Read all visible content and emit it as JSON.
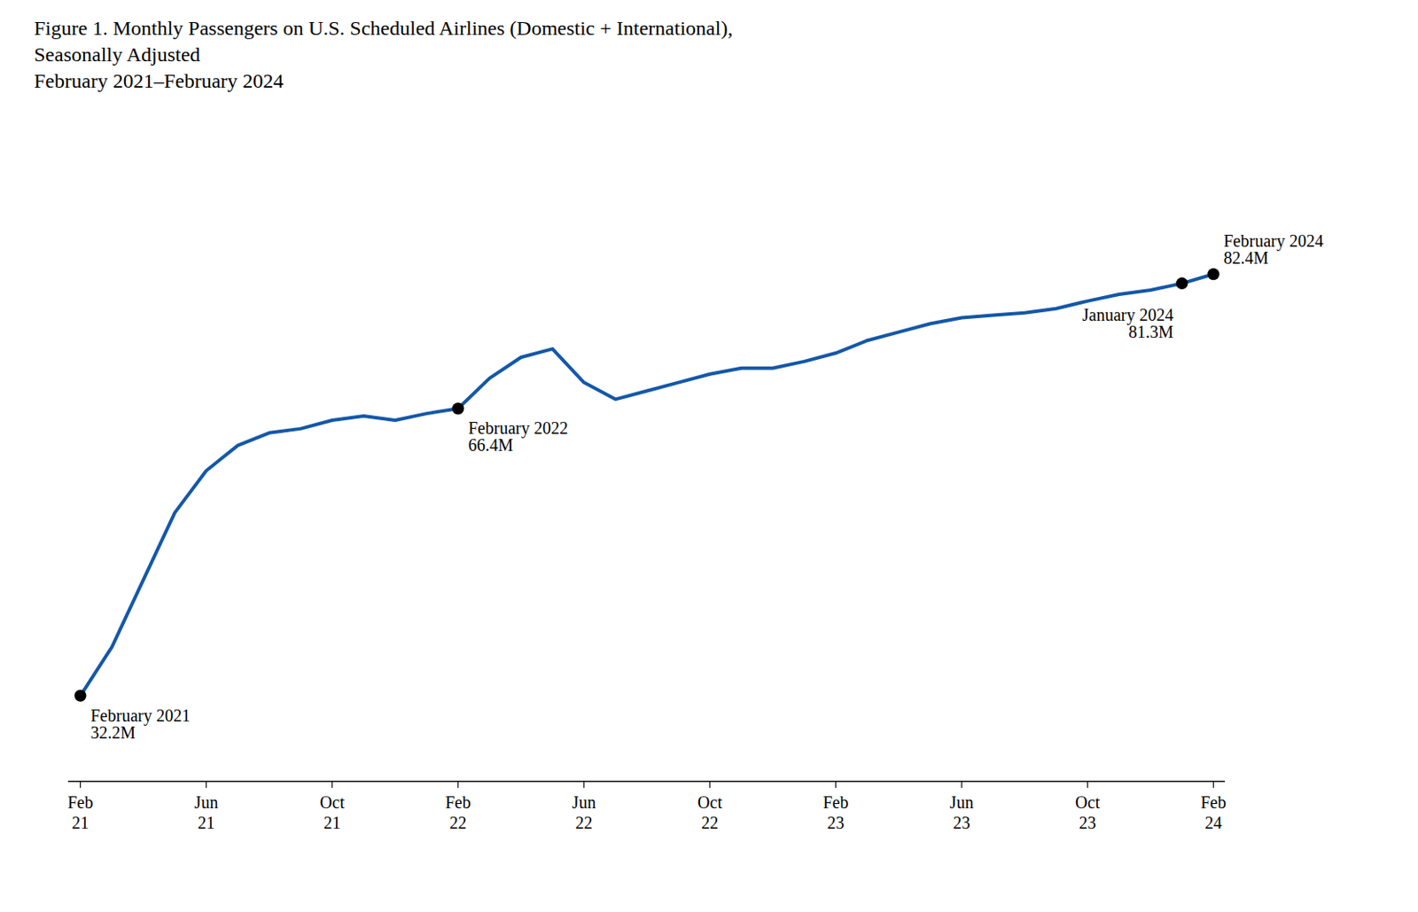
{
  "chart_data": {
    "type": "line",
    "title": "Figure 1. Monthly Passengers on U.S. Scheduled Airlines (Domestic + International),\nSeasonally Adjusted",
    "subtitle": "February 2021–February 2024",
    "categories": [
      "Feb\n21",
      null,
      null,
      null,
      "Jun\n21",
      null,
      null,
      null,
      "Oct\n21",
      null,
      null,
      null,
      "Feb\n22",
      null,
      null,
      null,
      "Jun\n22",
      null,
      null,
      null,
      "Oct\n22",
      null,
      null,
      null,
      "Feb\n23",
      null,
      null,
      null,
      "Jun\n23",
      null,
      null,
      null,
      "Oct\n23",
      null,
      null,
      null,
      "Feb\n24"
    ],
    "values": [
      32.2,
      38.0,
      46.0,
      54.0,
      59.0,
      62.0,
      63.5,
      64.0,
      65.0,
      65.5,
      65.0,
      65.8,
      66.4,
      70.0,
      72.5,
      73.5,
      69.5,
      67.5,
      68.5,
      69.5,
      70.5,
      71.2,
      71.2,
      72.0,
      73.0,
      74.5,
      75.5,
      76.5,
      77.2,
      77.5,
      77.8,
      78.3,
      79.2,
      80.0,
      80.5,
      81.3,
      82.4
    ],
    "color": "#1458a8",
    "marker": "circle",
    "annotations": [
      {
        "index": 0,
        "text": "February 2021\n32.2M"
      },
      {
        "index": 12,
        "text": "February 2022\n66.4M"
      },
      {
        "index": 35,
        "text": "January 2024\n81.3M"
      },
      {
        "index": 36,
        "text": "February 2024\n82.4M"
      }
    ],
    "ylim": [
      22,
      100
    ],
    "tick_labels": "x",
    "grid": false
  }
}
